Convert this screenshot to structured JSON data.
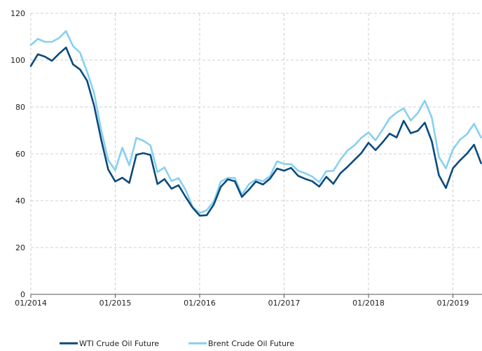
{
  "chart_data": {
    "type": "line",
    "title": "",
    "xlabel": "",
    "ylabel": "",
    "ylim": [
      0,
      120
    ],
    "xlim": [
      "2014-01",
      "2019-05"
    ],
    "grid": true,
    "legend_position": "bottom-left",
    "y_ticks": [
      "0",
      "20",
      "40",
      "60",
      "80",
      "100",
      "120"
    ],
    "x_ticks": [
      {
        "label": "01/2014",
        "date": "2014-01"
      },
      {
        "label": "01/2015",
        "date": "2015-01"
      },
      {
        "label": "01/2016",
        "date": "2016-01"
      },
      {
        "label": "01/2017",
        "date": "2017-01"
      },
      {
        "label": "01/2018",
        "date": "2018-01"
      },
      {
        "label": "01/2019",
        "date": "2019-01"
      }
    ],
    "series": [
      {
        "name": "WTI Crude Oil Future",
        "color": "#0b4a7d",
        "points": [
          [
            "2014-01",
            97.5
          ],
          [
            "2014-02",
            102.5
          ],
          [
            "2014-03",
            101.5
          ],
          [
            "2014-04",
            99.7
          ],
          [
            "2014-05",
            102.7
          ],
          [
            "2014-06",
            105.4
          ],
          [
            "2014-07",
            98.2
          ],
          [
            "2014-08",
            96.0
          ],
          [
            "2014-09",
            91.2
          ],
          [
            "2014-10",
            80.5
          ],
          [
            "2014-11",
            66.1
          ],
          [
            "2014-12",
            53.3
          ],
          [
            "2015-01",
            48.2
          ],
          [
            "2015-02",
            49.8
          ],
          [
            "2015-03",
            47.6
          ],
          [
            "2015-04",
            59.6
          ],
          [
            "2015-05",
            60.3
          ],
          [
            "2015-06",
            59.5
          ],
          [
            "2015-07",
            47.1
          ],
          [
            "2015-08",
            49.2
          ],
          [
            "2015-09",
            45.1
          ],
          [
            "2015-10",
            46.6
          ],
          [
            "2015-11",
            41.6
          ],
          [
            "2015-12",
            37.0
          ],
          [
            "2016-01",
            33.6
          ],
          [
            "2016-02",
            33.8
          ],
          [
            "2016-03",
            38.3
          ],
          [
            "2016-04",
            45.9
          ],
          [
            "2016-05",
            49.1
          ],
          [
            "2016-06",
            48.3
          ],
          [
            "2016-07",
            41.6
          ],
          [
            "2016-08",
            44.7
          ],
          [
            "2016-09",
            48.2
          ],
          [
            "2016-10",
            46.9
          ],
          [
            "2016-11",
            49.4
          ],
          [
            "2016-12",
            53.7
          ],
          [
            "2017-01",
            52.8
          ],
          [
            "2017-02",
            54.0
          ],
          [
            "2017-03",
            50.6
          ],
          [
            "2017-04",
            49.3
          ],
          [
            "2017-05",
            48.3
          ],
          [
            "2017-06",
            46.0
          ],
          [
            "2017-07",
            50.2
          ],
          [
            "2017-08",
            47.2
          ],
          [
            "2017-09",
            51.7
          ],
          [
            "2017-10",
            54.4
          ],
          [
            "2017-11",
            57.4
          ],
          [
            "2017-12",
            60.4
          ],
          [
            "2018-01",
            64.7
          ],
          [
            "2018-02",
            61.6
          ],
          [
            "2018-03",
            64.9
          ],
          [
            "2018-04",
            68.6
          ],
          [
            "2018-05",
            67.0
          ],
          [
            "2018-06",
            74.1
          ],
          [
            "2018-07",
            68.8
          ],
          [
            "2018-08",
            69.8
          ],
          [
            "2018-09",
            73.3
          ],
          [
            "2018-10",
            65.3
          ],
          [
            "2018-11",
            50.9
          ],
          [
            "2018-12",
            45.4
          ],
          [
            "2019-01",
            53.8
          ],
          [
            "2019-02",
            57.2
          ],
          [
            "2019-03",
            60.1
          ],
          [
            "2019-04",
            63.9
          ],
          [
            "2019-05",
            56.0
          ]
        ]
      },
      {
        "name": "Brent Crude Oil Future",
        "color": "#87d0f0",
        "points": [
          [
            "2014-01",
            106.4
          ],
          [
            "2014-02",
            109.1
          ],
          [
            "2014-03",
            107.8
          ],
          [
            "2014-04",
            107.8
          ],
          [
            "2014-05",
            109.4
          ],
          [
            "2014-06",
            112.4
          ],
          [
            "2014-07",
            106.0
          ],
          [
            "2014-08",
            103.2
          ],
          [
            "2014-09",
            95.0
          ],
          [
            "2014-10",
            85.9
          ],
          [
            "2014-11",
            70.2
          ],
          [
            "2014-12",
            57.3
          ],
          [
            "2015-01",
            53.0
          ],
          [
            "2015-02",
            62.6
          ],
          [
            "2015-03",
            55.1
          ],
          [
            "2015-04",
            66.8
          ],
          [
            "2015-05",
            65.6
          ],
          [
            "2015-06",
            63.6
          ],
          [
            "2015-07",
            52.2
          ],
          [
            "2015-08",
            54.2
          ],
          [
            "2015-09",
            48.4
          ],
          [
            "2015-10",
            49.6
          ],
          [
            "2015-11",
            44.6
          ],
          [
            "2015-12",
            37.3
          ],
          [
            "2016-01",
            34.7
          ],
          [
            "2016-02",
            35.9
          ],
          [
            "2016-03",
            39.6
          ],
          [
            "2016-04",
            48.1
          ],
          [
            "2016-05",
            49.7
          ],
          [
            "2016-06",
            49.7
          ],
          [
            "2016-07",
            42.5
          ],
          [
            "2016-08",
            47.0
          ],
          [
            "2016-09",
            49.1
          ],
          [
            "2016-10",
            48.3
          ],
          [
            "2016-11",
            50.5
          ],
          [
            "2016-12",
            56.8
          ],
          [
            "2017-01",
            55.7
          ],
          [
            "2017-02",
            55.6
          ],
          [
            "2017-03",
            52.8
          ],
          [
            "2017-04",
            51.7
          ],
          [
            "2017-05",
            50.3
          ],
          [
            "2017-06",
            47.9
          ],
          [
            "2017-07",
            52.6
          ],
          [
            "2017-08",
            52.7
          ],
          [
            "2017-09",
            57.5
          ],
          [
            "2017-10",
            61.4
          ],
          [
            "2017-11",
            63.6
          ],
          [
            "2017-12",
            66.9
          ],
          [
            "2018-01",
            69.1
          ],
          [
            "2018-02",
            65.8
          ],
          [
            "2018-03",
            70.3
          ],
          [
            "2018-04",
            75.2
          ],
          [
            "2018-05",
            77.6
          ],
          [
            "2018-06",
            79.4
          ],
          [
            "2018-07",
            74.2
          ],
          [
            "2018-08",
            77.4
          ],
          [
            "2018-09",
            82.7
          ],
          [
            "2018-10",
            75.5
          ],
          [
            "2018-11",
            58.7
          ],
          [
            "2018-12",
            53.8
          ],
          [
            "2019-01",
            61.9
          ],
          [
            "2019-02",
            66.0
          ],
          [
            "2019-03",
            68.4
          ],
          [
            "2019-04",
            72.8
          ],
          [
            "2019-05",
            67.0
          ]
        ]
      }
    ]
  }
}
